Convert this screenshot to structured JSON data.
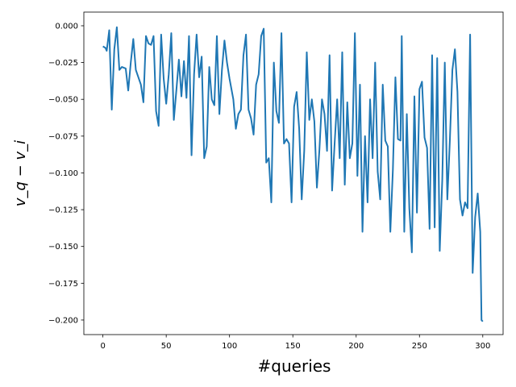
{
  "chart_data": {
    "type": "line",
    "xlabel": "#queries",
    "ylabel": "v_q − v_i",
    "xlim": [
      -15.05,
      316.05
    ],
    "ylim": [
      -0.2099,
      0.0093
    ],
    "xticks": [
      0,
      50,
      100,
      150,
      200,
      250,
      300
    ],
    "yticks": [
      {
        "value": 0,
        "label": "0.000"
      },
      {
        "value": -0.025,
        "label": "−0.025"
      },
      {
        "value": -0.05,
        "label": "−0.050"
      },
      {
        "value": -0.075,
        "label": "−0.075"
      },
      {
        "value": -0.1,
        "label": "−0.100"
      },
      {
        "value": -0.125,
        "label": "−0.125"
      },
      {
        "value": -0.15,
        "label": "−0.150"
      },
      {
        "value": -0.175,
        "label": "−0.175"
      },
      {
        "value": -0.2,
        "label": "−0.200"
      }
    ],
    "grid": false,
    "series": [
      {
        "color": "#1f77b4",
        "x": [
          0,
          2,
          3,
          5,
          7,
          9,
          11,
          13,
          15,
          18,
          20,
          22,
          24,
          26,
          28,
          30,
          32,
          34,
          36,
          38,
          40,
          42,
          44,
          46,
          48,
          50,
          52,
          54,
          56,
          58,
          60,
          62,
          64,
          66,
          68,
          70,
          72,
          74,
          76,
          78,
          80,
          82,
          84,
          86,
          88,
          90,
          92,
          94,
          96,
          98,
          100,
          103,
          105,
          107,
          109,
          111,
          113,
          115,
          117,
          119,
          121,
          123,
          125,
          127,
          129,
          131,
          133,
          135,
          137,
          139,
          141,
          143,
          145,
          147,
          149,
          151,
          153,
          155,
          157,
          159,
          161,
          163,
          165,
          167,
          169,
          171,
          173,
          175,
          177,
          179,
          181,
          183,
          185,
          187,
          189,
          191,
          193,
          195,
          197,
          199,
          201,
          203,
          205,
          207,
          209,
          211,
          213,
          215,
          217,
          219,
          221,
          223,
          225,
          227,
          229,
          231,
          233,
          235,
          236,
          238,
          240,
          242,
          244,
          246,
          248,
          250,
          252,
          254,
          256,
          258,
          260,
          262,
          264,
          266,
          268,
          270,
          272,
          274,
          276,
          278,
          280,
          282,
          284,
          286,
          288,
          290,
          292,
          294,
          296,
          298,
          299,
          300
        ],
        "values": [
          -0.014,
          -0.015,
          -0.017,
          -0.003,
          -0.057,
          -0.016,
          -0.001,
          -0.03,
          -0.028,
          -0.029,
          -0.044,
          -0.025,
          -0.009,
          -0.03,
          -0.035,
          -0.04,
          -0.052,
          -0.007,
          -0.012,
          -0.013,
          -0.007,
          -0.058,
          -0.068,
          -0.006,
          -0.036,
          -0.053,
          -0.033,
          -0.005,
          -0.064,
          -0.044,
          -0.023,
          -0.048,
          -0.024,
          -0.049,
          -0.007,
          -0.088,
          -0.033,
          -0.006,
          -0.035,
          -0.021,
          -0.09,
          -0.082,
          -0.028,
          -0.05,
          -0.054,
          -0.007,
          -0.06,
          -0.03,
          -0.01,
          -0.025,
          -0.036,
          -0.05,
          -0.07,
          -0.06,
          -0.057,
          -0.02,
          -0.006,
          -0.057,
          -0.063,
          -0.074,
          -0.04,
          -0.033,
          -0.007,
          -0.002,
          -0.093,
          -0.09,
          -0.12,
          -0.025,
          -0.058,
          -0.066,
          -0.005,
          -0.08,
          -0.077,
          -0.08,
          -0.12,
          -0.055,
          -0.045,
          -0.07,
          -0.118,
          -0.085,
          -0.018,
          -0.064,
          -0.05,
          -0.065,
          -0.11,
          -0.084,
          -0.05,
          -0.06,
          -0.085,
          -0.02,
          -0.112,
          -0.08,
          -0.05,
          -0.09,
          -0.018,
          -0.108,
          -0.052,
          -0.09,
          -0.08,
          -0.005,
          -0.102,
          -0.04,
          -0.14,
          -0.075,
          -0.12,
          -0.05,
          -0.09,
          -0.025,
          -0.099,
          -0.118,
          -0.04,
          -0.078,
          -0.082,
          -0.14,
          -0.098,
          -0.035,
          -0.077,
          -0.078,
          -0.007,
          -0.14,
          -0.06,
          -0.124,
          -0.154,
          -0.048,
          -0.127,
          -0.043,
          -0.038,
          -0.076,
          -0.083,
          -0.138,
          -0.02,
          -0.137,
          -0.022,
          -0.153,
          -0.105,
          -0.025,
          -0.118,
          -0.078,
          -0.03,
          -0.016,
          -0.045,
          -0.118,
          -0.129,
          -0.12,
          -0.124,
          -0.006,
          -0.168,
          -0.13,
          -0.114,
          -0.14,
          -0.2,
          -0.201
        ]
      }
    ]
  }
}
